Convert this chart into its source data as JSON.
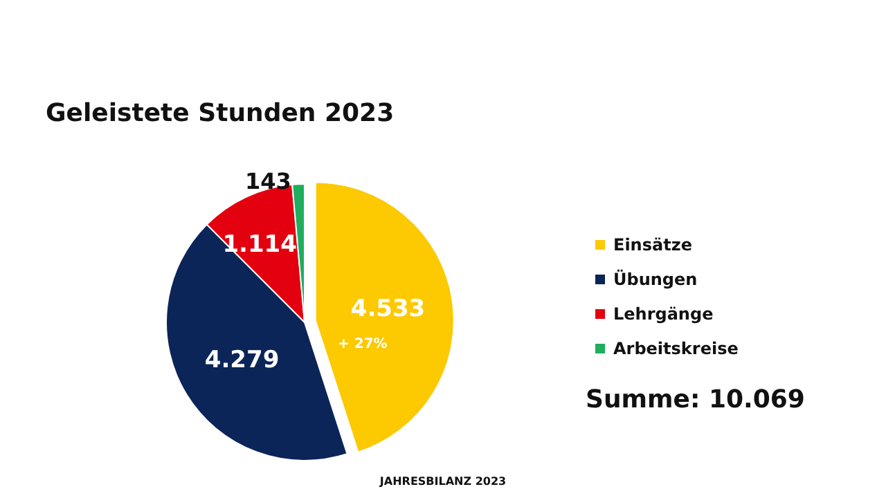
{
  "chart_data": {
    "type": "pie",
    "title": "Geleistete Stunden 2023",
    "categories": [
      "Einsätze",
      "Übungen",
      "Lehrgänge",
      "Arbeitskreise"
    ],
    "values": [
      4533,
      4279,
      1114,
      143
    ],
    "value_labels": [
      "4.533",
      "4.279",
      "1.114",
      "143"
    ],
    "colors": [
      "#fdc900",
      "#0b2559",
      "#e3000f",
      "#1fae5b"
    ],
    "data_labels": true,
    "legend": "right",
    "annotations": [
      "+ 27%",
      "Summe: 10.069",
      "JAHRESBILANZ 2023"
    ]
  }
}
